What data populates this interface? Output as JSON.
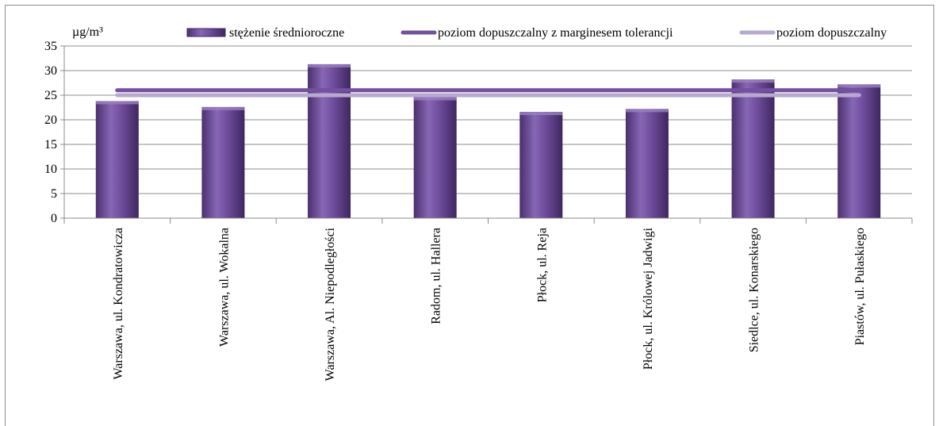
{
  "chart_data": {
    "type": "bar",
    "unit_label": "µg/m³",
    "categories": [
      "Warszawa, ul. Kondratowicza",
      "Warszawa, ul. Wokalna",
      "Warszawa, Al. Niepodległości",
      "Radom, ul. Hallera",
      "Płock, ul. Reja",
      "Płock, ul. Królowej Jadwigi",
      "Siedlce, ul. Konarskiego",
      "Piastów, ul. Pułaskiego"
    ],
    "series": [
      {
        "name": "stężenie średnioroczne",
        "type": "bar",
        "values": [
          23.8,
          22.6,
          31.3,
          24.6,
          21.6,
          22.2,
          28.2,
          27.2
        ],
        "color": "#6a4a93"
      }
    ],
    "reference_lines": [
      {
        "name": "poziom dopuszczalny z marginesem tolerancji",
        "value": 26,
        "color": "#7350a0"
      },
      {
        "name": "poziom dopuszczalny",
        "value": 25,
        "color": "#b8a9cf"
      }
    ],
    "ylim": [
      0,
      35
    ],
    "yticks": [
      0,
      5,
      10,
      15,
      20,
      25,
      30,
      35
    ],
    "grid": true,
    "legend_position": "top"
  }
}
